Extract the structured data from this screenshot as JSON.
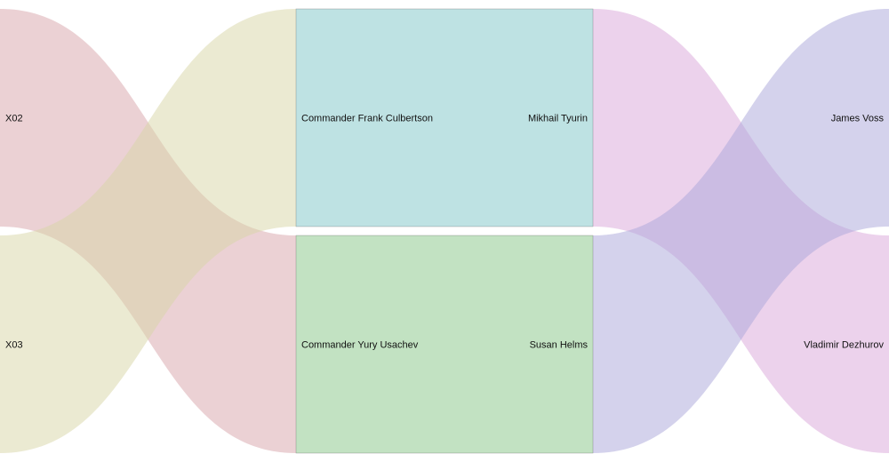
{
  "chart_data": {
    "type": "sankey",
    "columns": [
      {
        "id": "c0",
        "nodes": [
          {
            "id": "x02",
            "label": "X02",
            "value": 1,
            "color": "#e3b5bb"
          },
          {
            "id": "x03",
            "label": "X03",
            "value": 1,
            "color": "#e4e2bd"
          }
        ]
      },
      {
        "id": "c1",
        "nodes": [
          {
            "id": "culbertson",
            "label": "Commander Frank Culbertson",
            "value": 1,
            "color": "#bee2e3"
          },
          {
            "id": "usachev",
            "label": "Commander Yury Usachev",
            "value": 1,
            "color": "#c2e2c2"
          }
        ]
      },
      {
        "id": "c2",
        "nodes": [
          {
            "id": "tyurin",
            "label": "Mikhail Tyurin",
            "value": 1,
            "color": "#bee2e3"
          },
          {
            "id": "helms",
            "label": "Susan Helms",
            "value": 1,
            "color": "#c2e2c2"
          }
        ]
      },
      {
        "id": "c3",
        "nodes": [
          {
            "id": "voss",
            "label": "James Voss",
            "value": 1,
            "color": "#c2c0e3"
          },
          {
            "id": "dezhurov",
            "label": "Vladimir Dezhurov",
            "value": 1,
            "color": "#e3c0e3"
          }
        ]
      }
    ],
    "links": [
      {
        "source": "x02",
        "target": "usachev",
        "value": 1,
        "color": "#d8a3aa"
      },
      {
        "source": "x03",
        "target": "culbertson",
        "value": 1,
        "color": "#d8d6a6"
      },
      {
        "source": "tyurin",
        "target": "dezhurov",
        "value": 1,
        "color": "#d9a6d9"
      },
      {
        "source": "helms",
        "target": "voss",
        "value": 1,
        "color": "#a9a6d9"
      }
    ]
  }
}
